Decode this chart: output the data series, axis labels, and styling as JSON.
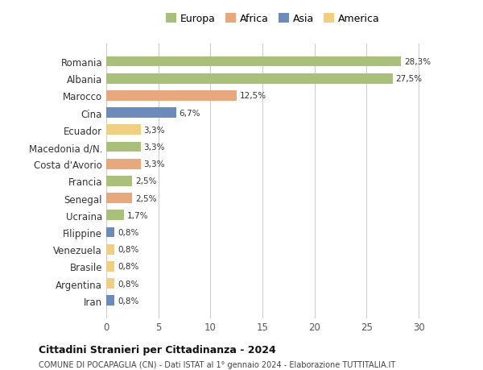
{
  "countries": [
    "Romania",
    "Albania",
    "Marocco",
    "Cina",
    "Ecuador",
    "Macedonia d/N.",
    "Costa d'Avorio",
    "Francia",
    "Senegal",
    "Ucraina",
    "Filippine",
    "Venezuela",
    "Brasile",
    "Argentina",
    "Iran"
  ],
  "values": [
    28.3,
    27.5,
    12.5,
    6.7,
    3.3,
    3.3,
    3.3,
    2.5,
    2.5,
    1.7,
    0.8,
    0.8,
    0.8,
    0.8,
    0.8
  ],
  "labels": [
    "28,3%",
    "27,5%",
    "12,5%",
    "6,7%",
    "3,3%",
    "3,3%",
    "3,3%",
    "2,5%",
    "2,5%",
    "1,7%",
    "0,8%",
    "0,8%",
    "0,8%",
    "0,8%",
    "0,8%"
  ],
  "continents": [
    "Europa",
    "Europa",
    "Africa",
    "Asia",
    "America",
    "Europa",
    "Africa",
    "Europa",
    "Africa",
    "Europa",
    "Asia",
    "America",
    "America",
    "America",
    "Asia"
  ],
  "continent_colors": {
    "Europa": "#a8c07a",
    "Africa": "#e8a87c",
    "Asia": "#6b8cba",
    "America": "#f0d080"
  },
  "legend_order": [
    "Europa",
    "Africa",
    "Asia",
    "America"
  ],
  "title": "Cittadini Stranieri per Cittadinanza - 2024",
  "subtitle": "COMUNE DI POCAPAGLIA (CN) - Dati ISTAT al 1° gennaio 2024 - Elaborazione TUTTITALIA.IT",
  "xlim": [
    0,
    32
  ],
  "xticks": [
    0,
    5,
    10,
    15,
    20,
    25,
    30
  ],
  "background_color": "#ffffff",
  "grid_color": "#cccccc"
}
